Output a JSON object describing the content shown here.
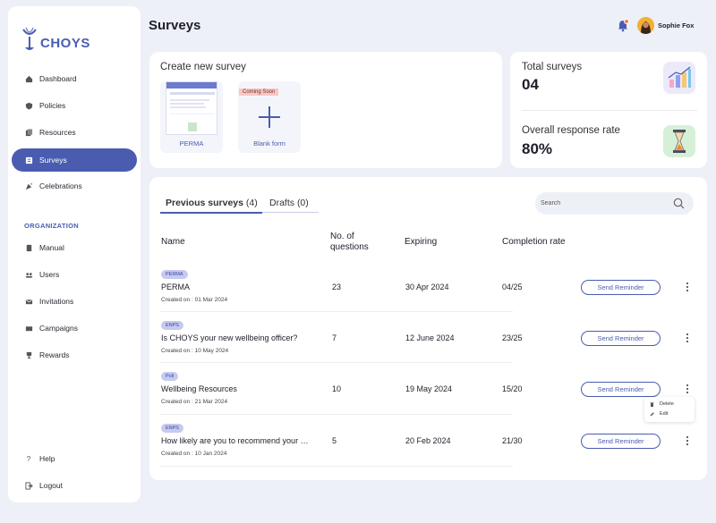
{
  "brand": {
    "name": "CHOYS",
    "color": "#4a5cb0"
  },
  "sidebar": {
    "items": [
      {
        "label": "Dashboard",
        "icon": "home-icon"
      },
      {
        "label": "Policies",
        "icon": "shield-icon"
      },
      {
        "label": "Resources",
        "icon": "documents-icon"
      },
      {
        "label": "Surveys",
        "icon": "survey-icon",
        "active": true
      },
      {
        "label": "Celebrations",
        "icon": "party-icon"
      }
    ],
    "section_label": "ORGANIZATION",
    "org_items": [
      {
        "label": "Manual",
        "icon": "book-icon"
      },
      {
        "label": "Users",
        "icon": "users-icon"
      },
      {
        "label": "Invitations",
        "icon": "mail-icon"
      },
      {
        "label": "Campaigns",
        "icon": "campaign-icon"
      },
      {
        "label": "Rewards",
        "icon": "trophy-icon"
      }
    ],
    "bottom_items": [
      {
        "label": "Help",
        "icon": "help-icon"
      },
      {
        "label": "Logout",
        "icon": "logout-icon"
      }
    ]
  },
  "header": {
    "title": "Surveys",
    "user_name": "Sophie Fox",
    "notification_badge_color": "#f27a54"
  },
  "create": {
    "title": "Create new survey",
    "templates": [
      {
        "label": "PERMA"
      },
      {
        "label": "Blank form",
        "badge": "Coming Soon"
      }
    ]
  },
  "stats": {
    "total_label": "Total surveys",
    "total_value": "04",
    "rate_label": "Overall response rate",
    "rate_value": "80%"
  },
  "list": {
    "tabs": [
      {
        "label": "Previous surveys",
        "count": "(4)",
        "active": true
      },
      {
        "label": "Drafts",
        "count": "(0)",
        "active": false
      }
    ],
    "search_placeholder": "Search",
    "columns": {
      "name": "Name",
      "questions_line1": "No. of",
      "questions_line2": "questions",
      "expiring": "Expiring",
      "completion": "Completion rate"
    },
    "reminder_label": "Send Reminder",
    "rows": [
      {
        "tag": "PERMA",
        "name": "PERMA",
        "created": "Created on : 01 Mar 2024",
        "questions": "23",
        "expiring": "30 Apr 2024",
        "completion": "04/25"
      },
      {
        "tag": "ENPS",
        "name": "Is CHOYS your new wellbeing officer?",
        "created": "Created on : 10 May 2024",
        "questions": "7",
        "expiring": "12 June 2024",
        "completion": "23/25"
      },
      {
        "tag": "Poll",
        "name": "Wellbeing Resources",
        "created": "Created on : 21 Mar 2024",
        "questions": "10",
        "expiring": "19 May 2024",
        "completion": "15/20"
      },
      {
        "tag": "ENPS",
        "name": "How likely are you to recommend your workplace?",
        "created": "Created on : 10 Jan 2024",
        "questions": "5",
        "expiring": "20 Feb 2024",
        "completion": "21/30"
      }
    ],
    "row_menu": {
      "delete": "Delete",
      "edit": "Edit"
    }
  }
}
